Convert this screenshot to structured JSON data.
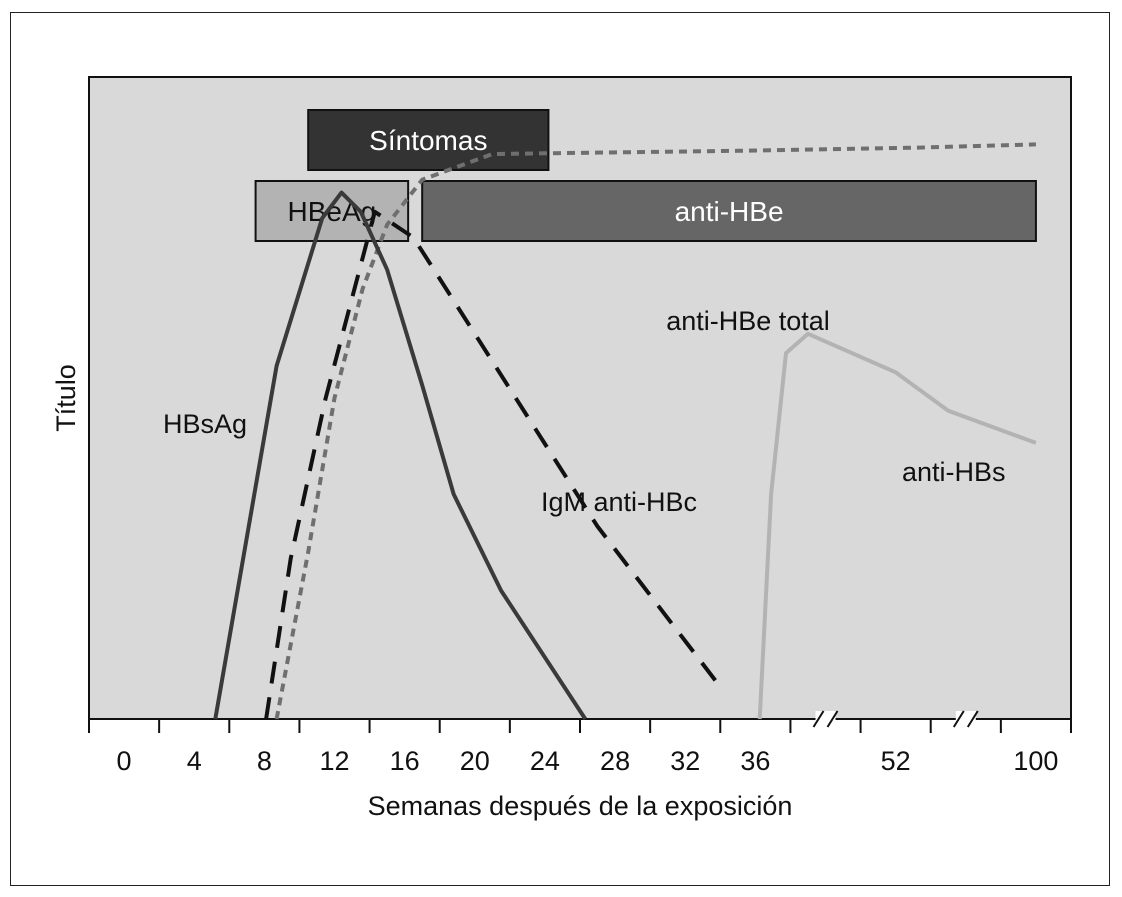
{
  "chart_data": {
    "type": "line",
    "xlabel": "Semanas después de la exposición",
    "ylabel": "Título",
    "x_ticks": [
      {
        "label": "0",
        "value": 0
      },
      {
        "label": "4",
        "value": 4
      },
      {
        "label": "8",
        "value": 8
      },
      {
        "label": "12",
        "value": 12
      },
      {
        "label": "16",
        "value": 16
      },
      {
        "label": "20",
        "value": 20
      },
      {
        "label": "24",
        "value": 24
      },
      {
        "label": "28",
        "value": 28
      },
      {
        "label": "32",
        "value": 32
      },
      {
        "label": "36",
        "value": 36
      },
      {
        "label": "52",
        "value": 52
      },
      {
        "label": "100",
        "value": 100
      }
    ],
    "axis_breaks": [
      "36-52",
      "52-100"
    ],
    "ylim": [
      0,
      100
    ],
    "grid": false,
    "colors": {
      "background": "#d9d9d9",
      "hbsag": "#3a3a3a",
      "igm": "#111111",
      "total": "#6f6f6f",
      "antihbs": "#b3b3b3",
      "bar_symptoms": "#333333",
      "bar_hbeag": "#b3b3b3",
      "bar_antihbe": "#666666"
    },
    "bars": [
      {
        "name": "Síntomas",
        "start": 10.5,
        "end": 24.2,
        "color": "#333333",
        "text_color": "#ffffff"
      },
      {
        "name": "HBeAg",
        "start": 7.5,
        "end": 16.2,
        "color": "#b3b3b3",
        "text_color": "#111111"
      },
      {
        "name": "anti-HBe",
        "start": 17.0,
        "end": 100,
        "color": "#666666",
        "text_color": "#ffffff"
      }
    ],
    "series": [
      {
        "name": "HBsAg",
        "style": "solid",
        "points": [
          [
            5.2,
            0
          ],
          [
            8.7,
            55
          ],
          [
            11.3,
            78
          ],
          [
            12.4,
            82
          ],
          [
            13.5,
            79
          ],
          [
            15,
            70
          ],
          [
            17,
            52
          ],
          [
            18.8,
            35
          ],
          [
            21.5,
            20
          ],
          [
            26.3,
            0
          ]
        ]
      },
      {
        "name": "IgM anti-HBc",
        "style": "dashed",
        "points": [
          [
            8.1,
            0
          ],
          [
            9.5,
            25
          ],
          [
            11.5,
            50
          ],
          [
            14.3,
            79
          ],
          [
            16.5,
            75
          ],
          [
            20,
            60
          ],
          [
            27,
            30
          ],
          [
            34,
            5
          ]
        ]
      },
      {
        "name": "anti-HBe total",
        "style": "dotted",
        "points": [
          [
            8.7,
            0
          ],
          [
            10.5,
            26
          ],
          [
            12,
            50
          ],
          [
            13.6,
            67
          ],
          [
            15,
            77
          ],
          [
            17,
            84
          ],
          [
            21,
            88
          ],
          [
            35,
            88.5
          ],
          [
            60,
            89
          ],
          [
            100,
            89.5
          ]
        ]
      },
      {
        "name": "anti-HBs",
        "style": "solid",
        "points": [
          [
            36.5,
            0
          ],
          [
            37.8,
            35
          ],
          [
            39.5,
            57
          ],
          [
            42,
            60
          ],
          [
            52,
            54
          ],
          [
            70,
            48
          ],
          [
            100,
            43
          ]
        ]
      }
    ]
  }
}
